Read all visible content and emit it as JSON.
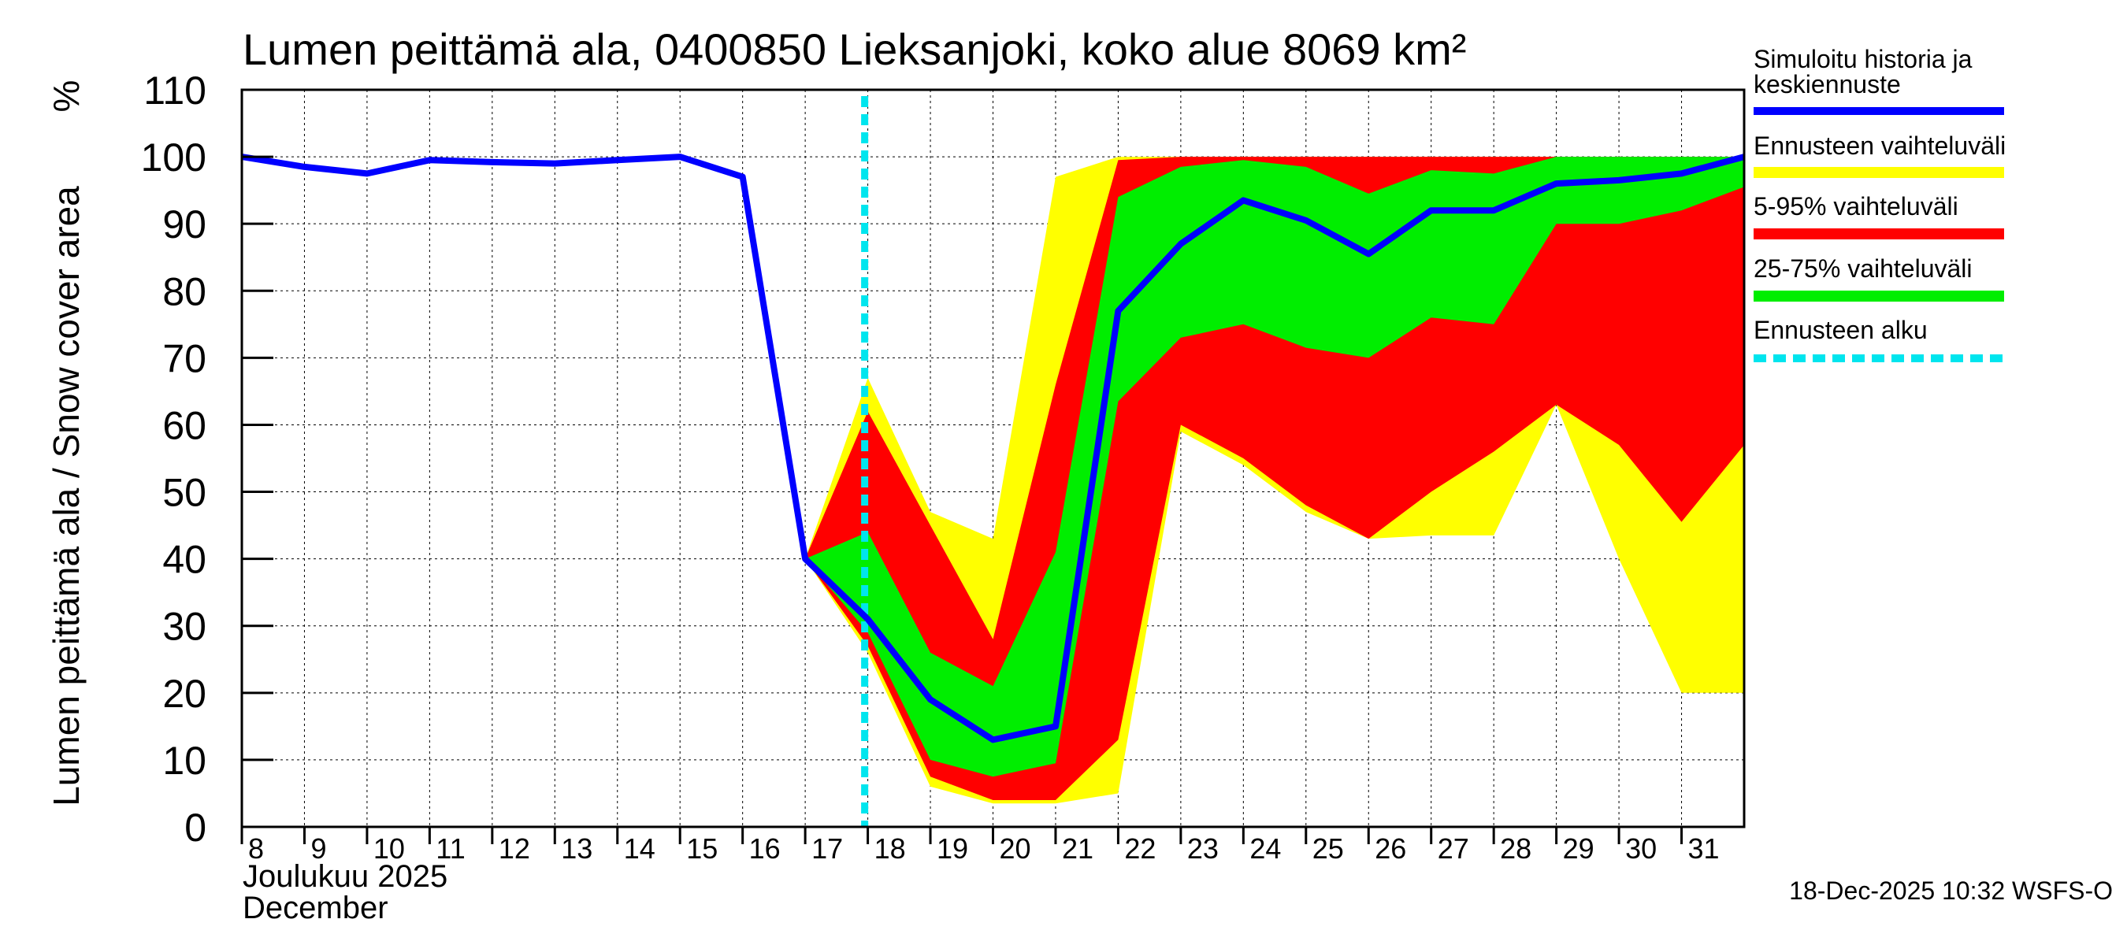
{
  "chart_data": {
    "type": "area",
    "title": "Lumen peittämä ala, 0400850 Lieksanjoki, koko alue 8069 km²",
    "ylabel": "Lumen peittämä ala / Snow cover area",
    "yunit": "%",
    "xlabel_fi": "Joulukuu  2025",
    "xlabel_en": "December",
    "footer": "18-Dec-2025 10:32 WSFS-O",
    "ylim": [
      0,
      110
    ],
    "yticks": [
      0,
      10,
      20,
      30,
      40,
      50,
      60,
      70,
      80,
      90,
      100,
      110
    ],
    "xlim": [
      8,
      32
    ],
    "xticks": [
      8,
      9,
      10,
      11,
      12,
      13,
      14,
      15,
      16,
      17,
      18,
      19,
      20,
      21,
      22,
      23,
      24,
      25,
      26,
      27,
      28,
      29,
      30,
      31
    ],
    "forecast_start": 17.95,
    "colors": {
      "history": "#0000ff",
      "range": "#ffff00",
      "p5_95": "#ff0000",
      "p25_75": "#00ee00",
      "forecast_start": "#00e5ee"
    },
    "legend": {
      "history": "Simuloitu historia ja keskiennuste",
      "range": "Ennusteen vaihteluväli",
      "p5_95": "5-95% vaihteluväli",
      "p25_75": "25-75% vaihteluväli",
      "forecast_start": "Ennusteen alku"
    },
    "series": [
      {
        "name": "history_and_median",
        "x": [
          8,
          9,
          10,
          11,
          12,
          13,
          14,
          15,
          16,
          17,
          18,
          19,
          20,
          21,
          22,
          23,
          24,
          25,
          26,
          27,
          28,
          29,
          30,
          31,
          32
        ],
        "values": [
          100,
          98.5,
          97.5,
          99.5,
          99.2,
          99,
          99.5,
          100,
          97,
          40,
          31,
          19,
          13,
          15,
          77,
          87,
          93.5,
          90.5,
          85.5,
          92,
          92,
          96,
          96.5,
          97.5,
          100
        ]
      },
      {
        "name": "range_band",
        "x": [
          17,
          18,
          19,
          20,
          21,
          22,
          23,
          24,
          25,
          26,
          27,
          28,
          29,
          30,
          31,
          32
        ],
        "upper": [
          40,
          67,
          47,
          43,
          97,
          100,
          100,
          100,
          100,
          100,
          100,
          100,
          100,
          100,
          100,
          100
        ],
        "lower": [
          40,
          26,
          6,
          3.5,
          3.5,
          5,
          59,
          54,
          47,
          43,
          43.5,
          43.5,
          63,
          40,
          20,
          20
        ]
      },
      {
        "name": "p5_95_band",
        "x": [
          17,
          18,
          19,
          20,
          21,
          22,
          23,
          24,
          25,
          26,
          27,
          28,
          29,
          30,
          31,
          32
        ],
        "upper": [
          40,
          62,
          45,
          28,
          66,
          99.5,
          100,
          100,
          100,
          100,
          100,
          100,
          100,
          100,
          100,
          100
        ],
        "lower": [
          40,
          27,
          7.5,
          4,
          4,
          13,
          60,
          55,
          48,
          43,
          50,
          56,
          63,
          57,
          45.5,
          57
        ]
      },
      {
        "name": "p25_75_band",
        "x": [
          17,
          18,
          19,
          20,
          21,
          22,
          23,
          24,
          25,
          26,
          27,
          28,
          29,
          30,
          31,
          32
        ],
        "upper": [
          40,
          44,
          26,
          21,
          41,
          94,
          98.5,
          99.5,
          98.5,
          94.5,
          98,
          97.5,
          100,
          100,
          100,
          100
        ],
        "lower": [
          40,
          29,
          10,
          7.5,
          9.5,
          63.5,
          73,
          75,
          71.5,
          70,
          76,
          75,
          90,
          90,
          92,
          95.5
        ]
      }
    ]
  }
}
